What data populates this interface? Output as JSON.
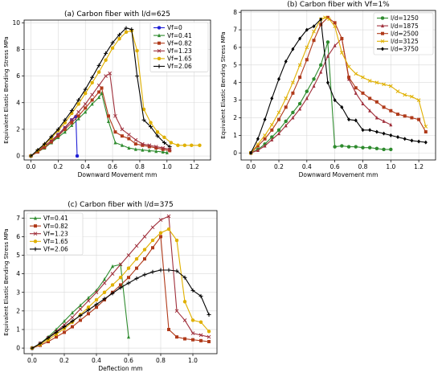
{
  "chart_data": [
    {
      "type": "line",
      "title": "(a) Carbon fiber with l/d=625",
      "xlabel": "Downward Movement mm",
      "ylabel": "Equivalent Elastic Bending Stress MPa",
      "xlim": [
        -0.05,
        1.32
      ],
      "ylim": [
        -0.3,
        10.2
      ],
      "xticks": [
        0.0,
        0.2,
        0.4,
        0.6,
        0.8,
        1.0,
        1.2
      ],
      "yticks": [
        0,
        2,
        4,
        6,
        8,
        10
      ],
      "grid": true,
      "legend": "top-right",
      "series": [
        {
          "name": "Vf=0",
          "color": "#1f1fd6",
          "marker": "circle",
          "x": [
            0.0,
            0.05,
            0.1,
            0.15,
            0.2,
            0.25,
            0.3,
            0.33,
            0.34
          ],
          "y": [
            0.0,
            0.35,
            0.75,
            1.15,
            1.6,
            2.1,
            2.7,
            2.95,
            0.0
          ]
        },
        {
          "name": "Vf=0.41",
          "color": "#2e8b2e",
          "marker": "triangle",
          "x": [
            0.0,
            0.05,
            0.1,
            0.15,
            0.2,
            0.25,
            0.3,
            0.35,
            0.4,
            0.45,
            0.5,
            0.52,
            0.57,
            0.62,
            0.67,
            0.72,
            0.77,
            0.82,
            0.87,
            0.92,
            0.97,
            1.0
          ],
          "y": [
            0.0,
            0.3,
            0.6,
            1.0,
            1.4,
            1.8,
            2.3,
            2.8,
            3.3,
            3.9,
            4.4,
            4.7,
            2.6,
            1.0,
            0.8,
            0.6,
            0.5,
            0.45,
            0.4,
            0.35,
            0.3,
            0.25
          ]
        },
        {
          "name": "Vf=0.82",
          "color": "#b03a1a",
          "marker": "square",
          "x": [
            0.0,
            0.05,
            0.1,
            0.15,
            0.2,
            0.25,
            0.3,
            0.35,
            0.4,
            0.45,
            0.5,
            0.52,
            0.57,
            0.62,
            0.67,
            0.72,
            0.77,
            0.82,
            0.87,
            0.92,
            0.97,
            1.02
          ],
          "y": [
            0.0,
            0.3,
            0.65,
            1.05,
            1.5,
            2.0,
            2.5,
            3.0,
            3.6,
            4.2,
            4.8,
            5.1,
            3.0,
            1.8,
            1.5,
            1.3,
            0.9,
            0.8,
            0.7,
            0.6,
            0.5,
            0.4
          ]
        },
        {
          "name": "Vf=1.23",
          "color": "#a0303c",
          "marker": "x",
          "x": [
            0.0,
            0.05,
            0.1,
            0.15,
            0.2,
            0.25,
            0.3,
            0.35,
            0.4,
            0.45,
            0.5,
            0.55,
            0.58,
            0.62,
            0.67,
            0.72,
            0.77,
            0.82,
            0.87,
            0.92,
            0.97,
            1.02
          ],
          "y": [
            0.0,
            0.35,
            0.75,
            1.15,
            1.6,
            2.15,
            2.7,
            3.3,
            3.9,
            4.6,
            5.3,
            6.0,
            6.2,
            3.0,
            2.0,
            1.6,
            1.2,
            0.9,
            0.8,
            0.7,
            0.6,
            0.5
          ]
        },
        {
          "name": "Vf=1.65",
          "color": "#e0b000",
          "marker": "circle",
          "x": [
            0.0,
            0.05,
            0.1,
            0.15,
            0.2,
            0.25,
            0.3,
            0.35,
            0.4,
            0.45,
            0.5,
            0.55,
            0.6,
            0.65,
            0.7,
            0.74,
            0.78,
            0.83,
            0.88,
            0.93,
            0.98,
            1.03,
            1.08,
            1.13,
            1.18,
            1.24
          ],
          "y": [
            0.0,
            0.4,
            0.85,
            1.35,
            1.9,
            2.5,
            3.2,
            3.9,
            4.7,
            5.5,
            6.3,
            7.2,
            8.1,
            8.8,
            9.3,
            9.4,
            7.9,
            3.5,
            2.5,
            1.8,
            1.4,
            1.0,
            0.8,
            0.8,
            0.8,
            0.8
          ]
        },
        {
          "name": "Vf=2.06",
          "color": "#000000",
          "marker": "plus",
          "x": [
            0.0,
            0.05,
            0.1,
            0.15,
            0.2,
            0.25,
            0.3,
            0.35,
            0.4,
            0.45,
            0.5,
            0.55,
            0.6,
            0.65,
            0.7,
            0.74,
            0.78,
            0.83,
            0.88,
            0.93,
            0.98,
            1.02
          ],
          "y": [
            0.0,
            0.45,
            0.9,
            1.45,
            2.0,
            2.7,
            3.4,
            4.2,
            5.0,
            5.9,
            6.8,
            7.7,
            8.5,
            9.1,
            9.6,
            9.5,
            6.0,
            2.7,
            2.2,
            1.5,
            1.0,
            0.7
          ]
        }
      ]
    },
    {
      "type": "line",
      "title": "(b) Carbon fiber with Vf=1%",
      "xlabel": "Downward Movement mm",
      "ylabel": "Equivalent Elastic Bending Stress MPa",
      "xlim": [
        -0.07,
        1.32
      ],
      "ylim": [
        -0.4,
        8.1
      ],
      "xticks": [
        0.0,
        0.2,
        0.4,
        0.6,
        0.8,
        1.0,
        1.2
      ],
      "yticks": [
        0,
        1,
        2,
        3,
        4,
        5,
        6,
        7,
        8
      ],
      "grid": true,
      "legend": "top-right",
      "series": [
        {
          "name": "l/d=1250",
          "color": "#2e8b2e",
          "marker": "circle",
          "x": [
            0.0,
            0.05,
            0.1,
            0.15,
            0.2,
            0.25,
            0.3,
            0.35,
            0.4,
            0.45,
            0.5,
            0.55,
            0.6,
            0.65,
            0.7,
            0.75,
            0.8,
            0.85,
            0.9,
            0.95,
            1.0
          ],
          "y": [
            0.0,
            0.2,
            0.5,
            0.9,
            1.3,
            1.8,
            2.3,
            2.8,
            3.5,
            4.2,
            5.0,
            6.3,
            0.35,
            0.4,
            0.35,
            0.35,
            0.3,
            0.3,
            0.25,
            0.2,
            0.2
          ]
        },
        {
          "name": "l/d=1875",
          "color": "#a0303c",
          "marker": "triangle",
          "x": [
            0.0,
            0.05,
            0.1,
            0.15,
            0.2,
            0.25,
            0.3,
            0.35,
            0.4,
            0.45,
            0.5,
            0.55,
            0.6,
            0.65,
            0.7,
            0.75,
            0.8,
            0.85,
            0.9,
            0.95,
            1.0
          ],
          "y": [
            0.0,
            0.15,
            0.4,
            0.75,
            1.1,
            1.55,
            2.0,
            2.5,
            3.1,
            3.8,
            4.6,
            5.5,
            6.1,
            6.5,
            4.2,
            3.4,
            2.8,
            2.4,
            2.0,
            1.8,
            1.6
          ]
        },
        {
          "name": "l/d=2500",
          "color": "#b03a1a",
          "marker": "square",
          "x": [
            0.0,
            0.05,
            0.1,
            0.15,
            0.2,
            0.25,
            0.3,
            0.35,
            0.4,
            0.45,
            0.5,
            0.55,
            0.6,
            0.65,
            0.7,
            0.75,
            0.8,
            0.85,
            0.9,
            0.95,
            1.0,
            1.05,
            1.1,
            1.15,
            1.2,
            1.25
          ],
          "y": [
            0.0,
            0.4,
            0.8,
            1.3,
            1.9,
            2.6,
            3.4,
            4.3,
            5.3,
            6.4,
            7.3,
            7.7,
            7.4,
            6.5,
            4.3,
            3.7,
            3.4,
            3.1,
            2.9,
            2.6,
            2.4,
            2.2,
            2.1,
            2.0,
            1.9,
            1.2
          ]
        },
        {
          "name": "l/d=3125",
          "color": "#e0b000",
          "marker": "x",
          "x": [
            0.0,
            0.05,
            0.1,
            0.15,
            0.2,
            0.25,
            0.3,
            0.35,
            0.4,
            0.45,
            0.5,
            0.53,
            0.56,
            0.6,
            0.65,
            0.7,
            0.75,
            0.8,
            0.85,
            0.9,
            0.95,
            1.0,
            1.05,
            1.1,
            1.15,
            1.2,
            1.25
          ],
          "y": [
            0.0,
            0.5,
            1.0,
            1.6,
            2.3,
            3.1,
            4.0,
            5.0,
            6.0,
            6.9,
            7.6,
            7.7,
            7.6,
            7.2,
            5.7,
            4.9,
            4.5,
            4.3,
            4.1,
            4.0,
            3.9,
            3.8,
            3.5,
            3.3,
            3.2,
            3.0,
            1.5
          ]
        },
        {
          "name": "l/d=3750",
          "color": "#000000",
          "marker": "diamond",
          "x": [
            0.0,
            0.05,
            0.1,
            0.15,
            0.2,
            0.25,
            0.3,
            0.35,
            0.4,
            0.45,
            0.5,
            0.55,
            0.6,
            0.65,
            0.7,
            0.75,
            0.8,
            0.85,
            0.9,
            0.95,
            1.0,
            1.05,
            1.1,
            1.15,
            1.2,
            1.25
          ],
          "y": [
            0.0,
            0.8,
            1.9,
            3.1,
            4.2,
            5.2,
            5.9,
            6.5,
            7.0,
            7.2,
            7.6,
            4.0,
            3.0,
            2.6,
            1.9,
            1.85,
            1.3,
            1.3,
            1.2,
            1.1,
            1.0,
            0.9,
            0.8,
            0.7,
            0.65,
            0.6
          ]
        }
      ]
    },
    {
      "type": "line",
      "title": "(c) Carbon fiber with l/d=375",
      "xlabel": "Deflection mm",
      "ylabel": "Equivalent Elastic Bending Stress MPa",
      "xlim": [
        -0.05,
        1.15
      ],
      "ylim": [
        -0.3,
        7.4
      ],
      "xticks": [
        0.0,
        0.2,
        0.4,
        0.6,
        0.8,
        1.0
      ],
      "yticks": [
        0,
        1,
        2,
        3,
        4,
        5,
        6,
        7
      ],
      "grid": true,
      "legend": "top-left",
      "series": [
        {
          "name": "Vf=0.41",
          "color": "#2e8b2e",
          "marker": "triangle",
          "x": [
            0.0,
            0.05,
            0.1,
            0.15,
            0.2,
            0.25,
            0.3,
            0.35,
            0.4,
            0.45,
            0.5,
            0.55,
            0.6
          ],
          "y": [
            0.0,
            0.25,
            0.6,
            1.0,
            1.45,
            1.9,
            2.3,
            2.7,
            3.1,
            3.7,
            4.4,
            4.5,
            0.6
          ]
        },
        {
          "name": "Vf=0.82",
          "color": "#b03a1a",
          "marker": "square",
          "x": [
            0.0,
            0.05,
            0.1,
            0.15,
            0.2,
            0.25,
            0.3,
            0.35,
            0.4,
            0.45,
            0.5,
            0.55,
            0.6,
            0.65,
            0.7,
            0.75,
            0.8,
            0.85,
            0.9,
            0.95,
            1.0,
            1.05,
            1.1
          ],
          "y": [
            0.0,
            0.15,
            0.35,
            0.6,
            0.85,
            1.15,
            1.5,
            1.85,
            2.2,
            2.6,
            3.0,
            3.4,
            3.8,
            4.3,
            4.8,
            5.4,
            6.0,
            1.0,
            0.6,
            0.5,
            0.45,
            0.4,
            0.35
          ]
        },
        {
          "name": "Vf=1.23",
          "color": "#a0303c",
          "marker": "x",
          "x": [
            0.0,
            0.05,
            0.1,
            0.15,
            0.2,
            0.25,
            0.3,
            0.35,
            0.4,
            0.45,
            0.5,
            0.55,
            0.6,
            0.65,
            0.7,
            0.75,
            0.8,
            0.85,
            0.9,
            0.95,
            1.0,
            1.05,
            1.1
          ],
          "y": [
            0.0,
            0.25,
            0.55,
            0.9,
            1.25,
            1.65,
            2.1,
            2.55,
            3.0,
            3.5,
            4.0,
            4.5,
            5.0,
            5.5,
            6.0,
            6.5,
            6.9,
            7.1,
            2.0,
            1.5,
            0.8,
            0.7,
            0.6
          ]
        },
        {
          "name": "Vf=1.65",
          "color": "#e0b000",
          "marker": "circle",
          "x": [
            0.0,
            0.05,
            0.1,
            0.15,
            0.2,
            0.25,
            0.3,
            0.35,
            0.4,
            0.45,
            0.5,
            0.55,
            0.6,
            0.65,
            0.7,
            0.75,
            0.8,
            0.85,
            0.9,
            0.95,
            1.0,
            1.05,
            1.1
          ],
          "y": [
            0.0,
            0.2,
            0.45,
            0.75,
            1.05,
            1.4,
            1.8,
            2.2,
            2.6,
            3.0,
            3.4,
            3.8,
            4.3,
            4.8,
            5.3,
            5.8,
            6.2,
            6.4,
            5.8,
            2.5,
            1.5,
            1.4,
            0.9
          ]
        },
        {
          "name": "Vf=2.06",
          "color": "#000000",
          "marker": "plus",
          "x": [
            0.0,
            0.05,
            0.1,
            0.15,
            0.2,
            0.25,
            0.3,
            0.35,
            0.4,
            0.45,
            0.5,
            0.55,
            0.6,
            0.65,
            0.7,
            0.75,
            0.8,
            0.85,
            0.9,
            0.95,
            1.0,
            1.05,
            1.1
          ],
          "y": [
            0.0,
            0.25,
            0.55,
            0.85,
            1.15,
            1.45,
            1.75,
            2.05,
            2.35,
            2.65,
            2.95,
            3.25,
            3.5,
            3.75,
            3.95,
            4.1,
            4.2,
            4.2,
            4.15,
            3.8,
            3.1,
            2.8,
            1.8
          ]
        }
      ]
    }
  ]
}
